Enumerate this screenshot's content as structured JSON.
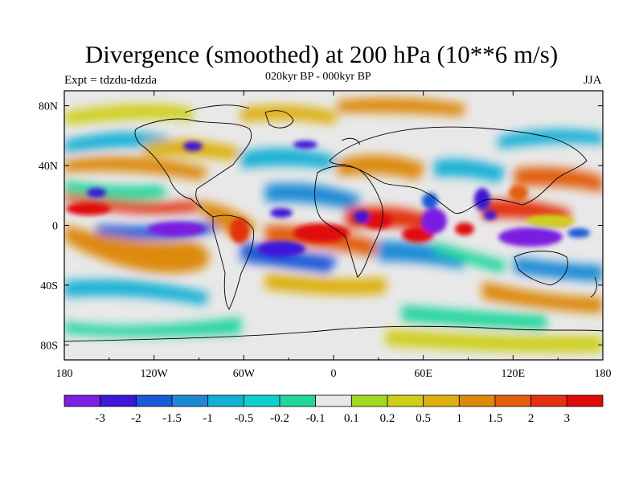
{
  "chart_data": {
    "type": "heatmap",
    "title": "Divergence (smoothed) at 200 hPa (10**6 m/s)",
    "subtitle": "020kyr BP - 000kyr BP",
    "experiment": "Expt = tdzdu-tdzda",
    "season": "JJA",
    "lon_range": [
      -180,
      180
    ],
    "lat_range": [
      -90,
      90
    ],
    "x_ticks": [
      {
        "value": -180,
        "label": "180"
      },
      {
        "value": -120,
        "label": "120W"
      },
      {
        "value": -60,
        "label": "60W"
      },
      {
        "value": 0,
        "label": "0"
      },
      {
        "value": 60,
        "label": "60E"
      },
      {
        "value": 120,
        "label": "120E"
      },
      {
        "value": 180,
        "label": "180"
      }
    ],
    "y_ticks": [
      {
        "value": 80,
        "label": "80N"
      },
      {
        "value": 40,
        "label": "40N"
      },
      {
        "value": 0,
        "label": "0"
      },
      {
        "value": -40,
        "label": "40S"
      },
      {
        "value": -80,
        "label": "80S"
      }
    ],
    "colorbar": {
      "labels": [
        "-3",
        "-2",
        "-1.5",
        "-1",
        "-0.5",
        "-0.2",
        "-0.1",
        "0.1",
        "0.2",
        "0.5",
        "1",
        "1.5",
        "2",
        "3"
      ],
      "colors": [
        "#7b1fe0",
        "#3d17d8",
        "#1a5ad8",
        "#1e8ad6",
        "#12b0d6",
        "#0ecfcf",
        "#22d69e",
        "#e8e8e8",
        "#a2d81e",
        "#cfcf1a",
        "#ddb010",
        "#dd8a0a",
        "#e25e0c",
        "#e3300f",
        "#e00a0a"
      ]
    },
    "anomaly_centers": [
      {
        "lon": -100,
        "lat": -2,
        "value": -3
      },
      {
        "lon": -148,
        "lat": 10,
        "value": 2
      },
      {
        "lon": -75,
        "lat": -2,
        "value": 2
      },
      {
        "lon": -35,
        "lat": -18,
        "value": -3
      },
      {
        "lon": -8,
        "lat": -3,
        "value": 2
      },
      {
        "lon": 25,
        "lat": 5,
        "value": 1.5
      },
      {
        "lon": 45,
        "lat": -5,
        "value": 2
      },
      {
        "lon": 65,
        "lat": 2,
        "value": -3
      },
      {
        "lon": 100,
        "lat": 0,
        "value": 2
      },
      {
        "lon": 128,
        "lat": -5,
        "value": -3
      },
      {
        "lon": 148,
        "lat": 25,
        "value": 1.5
      },
      {
        "lon": -130,
        "lat": 50,
        "value": 1
      },
      {
        "lon": -95,
        "lat": 60,
        "value": -2
      },
      {
        "lon": -160,
        "lat": -28,
        "value": 1.5
      },
      {
        "lon": 100,
        "lat": -40,
        "value": -1
      },
      {
        "lon": 0,
        "lat": 60,
        "value": 1
      }
    ]
  }
}
